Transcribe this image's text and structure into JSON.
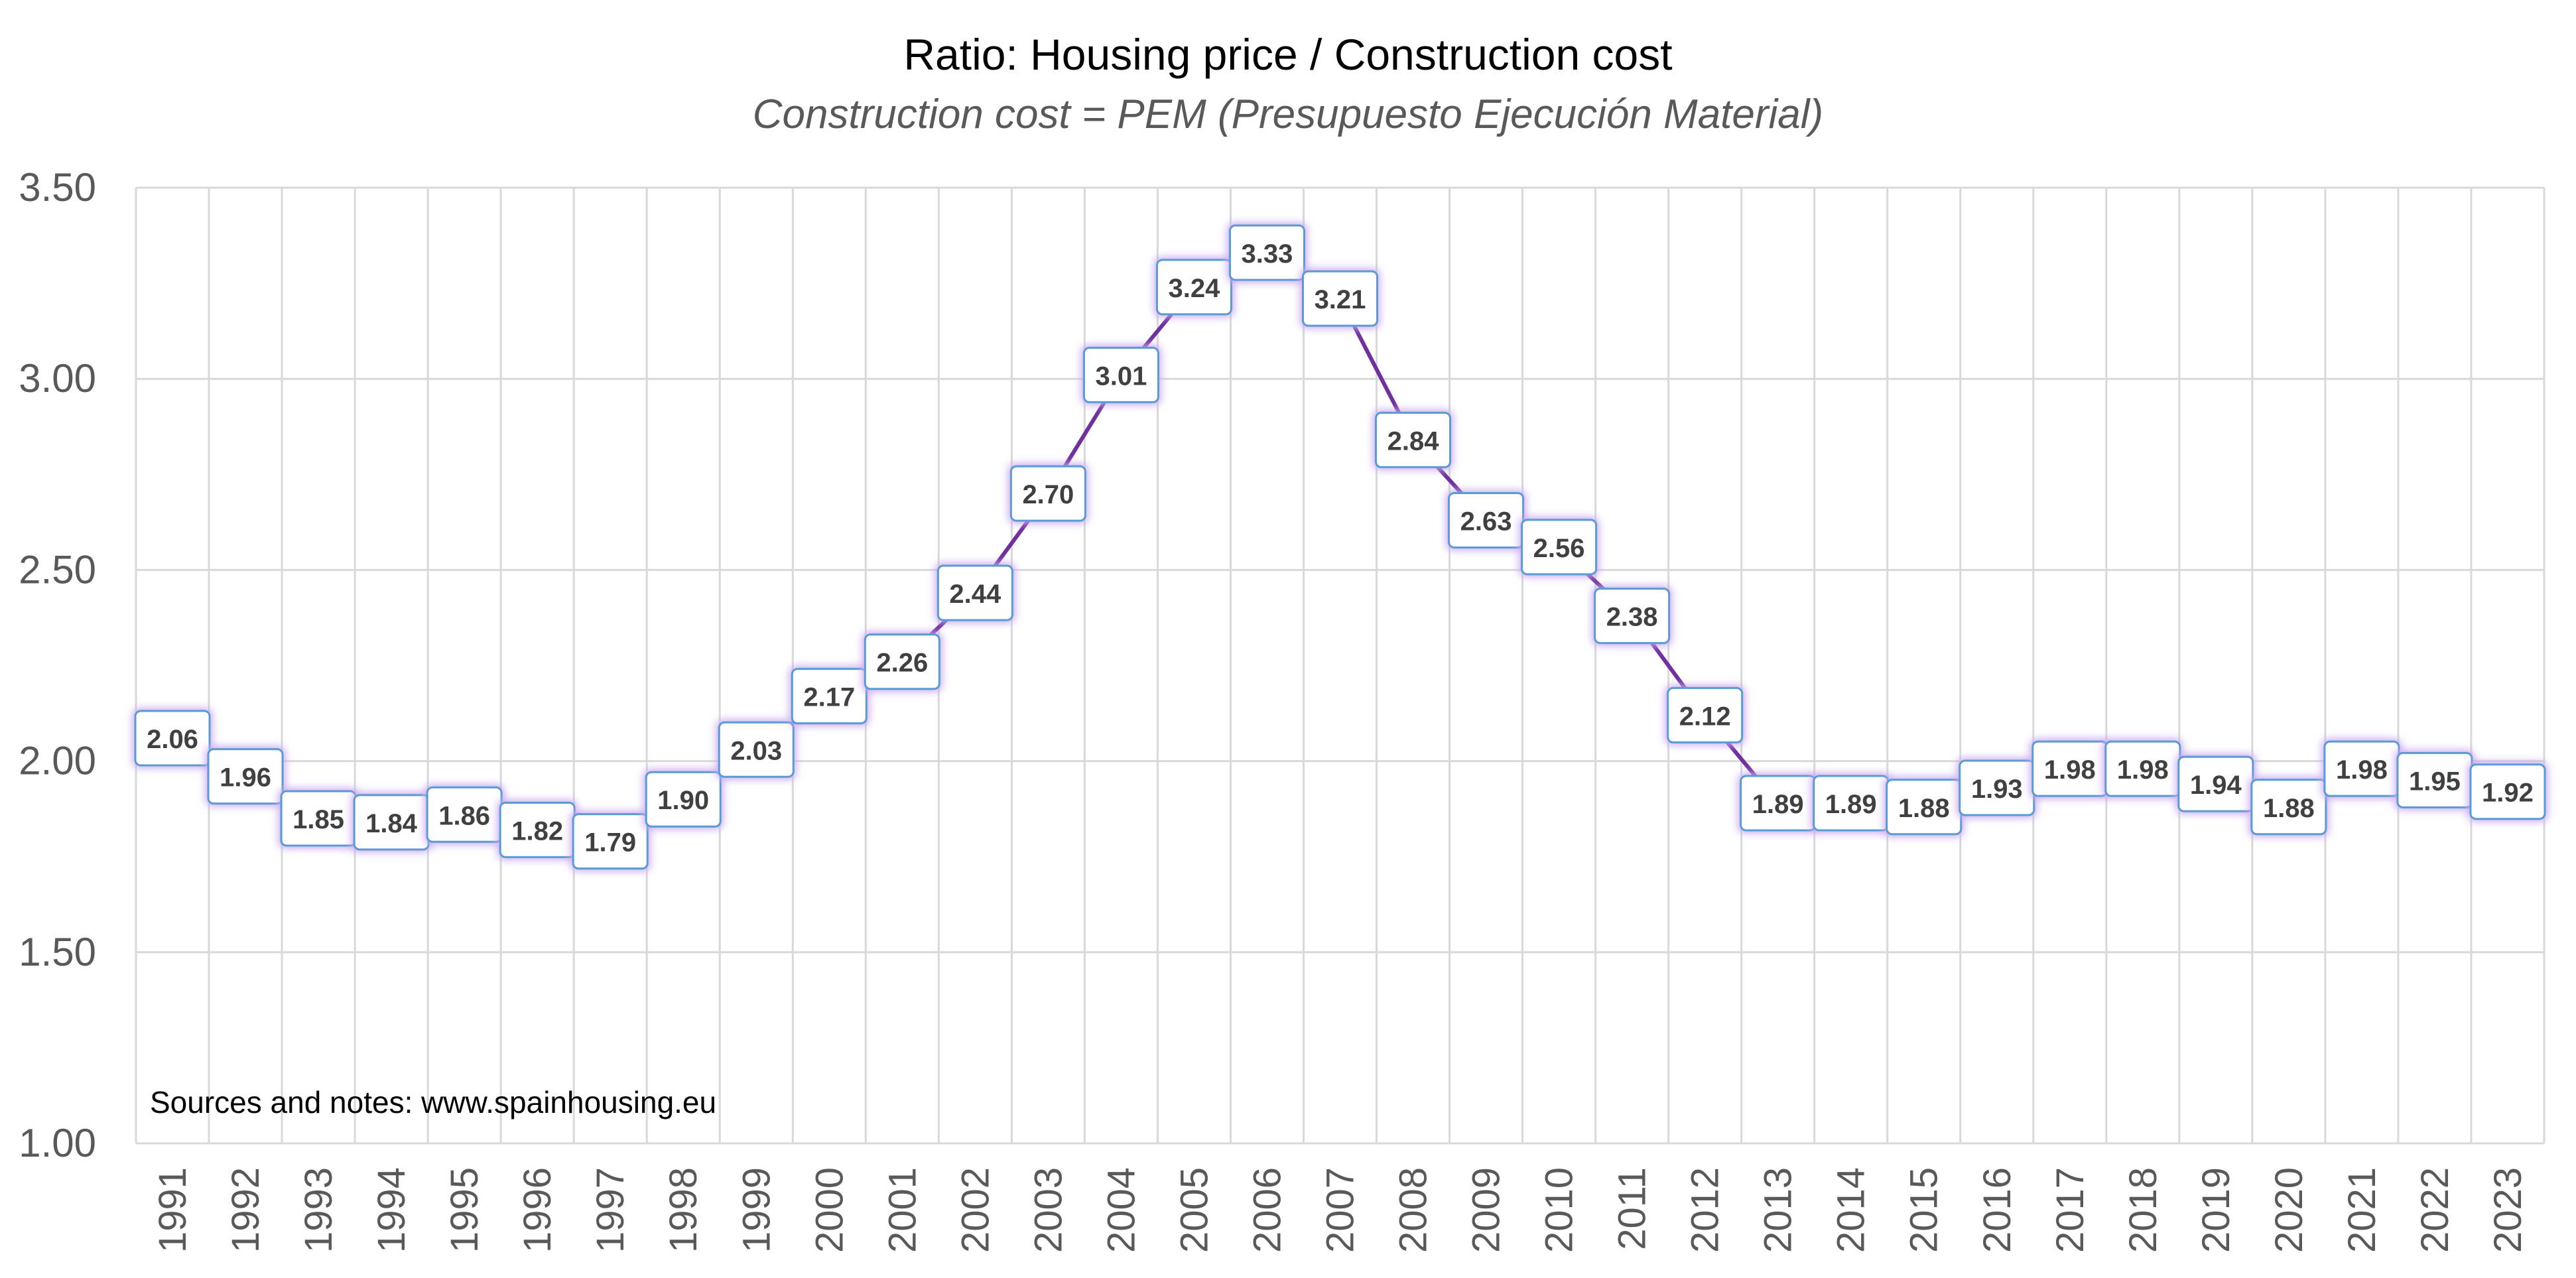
{
  "chart_data": {
    "type": "line",
    "title": "Ratio: Housing price / Construction cost",
    "subtitle": "Construction cost = PEM (Presupuesto Ejecución Material)",
    "xlabel": "",
    "ylabel": "",
    "ylim": [
      1.0,
      3.5
    ],
    "yticks": [
      "1.00",
      "1.50",
      "2.00",
      "2.50",
      "3.00",
      "3.50"
    ],
    "grid": true,
    "legend": "none",
    "categories": [
      "1991",
      "1992",
      "1993",
      "1994",
      "1995",
      "1996",
      "1997",
      "1998",
      "1999",
      "2000",
      "2001",
      "2002",
      "2003",
      "2004",
      "2005",
      "2006",
      "2007",
      "2008",
      "2009",
      "2010",
      "2011",
      "2012",
      "2013",
      "2014",
      "2015",
      "2016",
      "2017",
      "2018",
      "2019",
      "2020",
      "2021",
      "2022",
      "2023"
    ],
    "series": [
      {
        "name": "Ratio",
        "color": "#7030A0",
        "values": [
          2.06,
          1.96,
          1.85,
          1.84,
          1.86,
          1.82,
          1.79,
          1.9,
          2.03,
          2.17,
          2.26,
          2.44,
          2.7,
          3.01,
          3.24,
          3.33,
          3.21,
          2.84,
          2.63,
          2.56,
          2.38,
          2.12,
          1.89,
          1.89,
          1.88,
          1.93,
          1.98,
          1.98,
          1.94,
          1.88,
          1.98,
          1.95,
          1.92
        ],
        "labels": [
          "2.06",
          "1.96",
          "1.85",
          "1.84",
          "1.86",
          "1.82",
          "1.79",
          "1.90",
          "2.03",
          "2.17",
          "2.26",
          "2.44",
          "2.70",
          "3.01",
          "3.24",
          "3.33",
          "3.21",
          "2.84",
          "2.63",
          "2.56",
          "2.38",
          "2.12",
          "1.89",
          "1.89",
          "1.88",
          "1.93",
          "1.98",
          "1.98",
          "1.94",
          "1.88",
          "1.98",
          "1.95",
          "1.92"
        ]
      }
    ],
    "annotation": "Sources and notes: www.spainhousing.eu",
    "colors": {
      "grid": "#D9D9D9",
      "tick_text": "#595959",
      "label_border": "#5B9BD5",
      "label_glow": "#C9A8F0"
    }
  }
}
